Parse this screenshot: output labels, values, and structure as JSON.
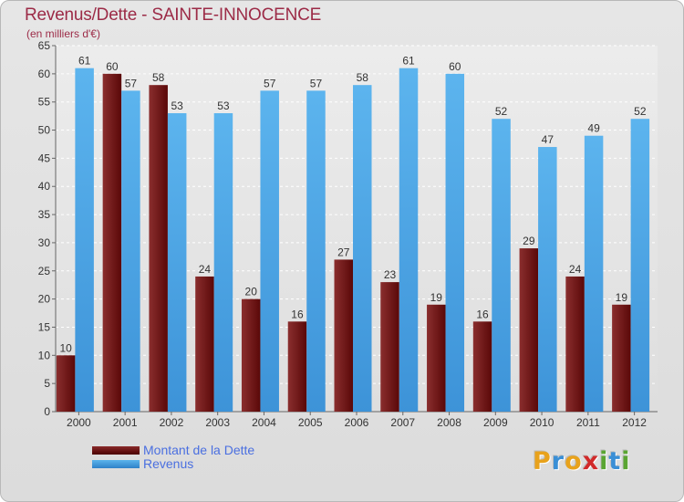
{
  "chart_data": {
    "type": "bar",
    "title": "Revenus/Dette - SAINTE-INNOCENCE",
    "subtitle": "(en milliers d'€)",
    "categories": [
      "2000",
      "2001",
      "2002",
      "2003",
      "2004",
      "2005",
      "2006",
      "2007",
      "2008",
      "2009",
      "2010",
      "2011",
      "2012"
    ],
    "series": [
      {
        "name": "Montant de la Dette",
        "values": [
          10,
          60,
          58,
          24,
          20,
          16,
          27,
          23,
          19,
          16,
          29,
          24,
          19
        ],
        "color": "#6e1818"
      },
      {
        "name": "Revenus",
        "values": [
          61,
          57,
          53,
          53,
          57,
          57,
          58,
          61,
          60,
          52,
          47,
          49,
          52
        ],
        "color": "#4aa3e6"
      }
    ],
    "ylim": [
      0,
      65
    ],
    "yticks": [
      0,
      5,
      10,
      15,
      20,
      25,
      30,
      35,
      40,
      45,
      50,
      55,
      60,
      65
    ],
    "grid": true,
    "legend_position": "bottom-left"
  },
  "logo": {
    "text": "Proxiti",
    "letters": [
      "P",
      "r",
      "o",
      "x",
      "i",
      "t",
      "i"
    ],
    "colors": [
      "#e8a21c",
      "#3a8fd6",
      "#e8a21c",
      "#d12a2a",
      "#5aa532",
      "#3a8fd6",
      "#5aa532"
    ]
  }
}
